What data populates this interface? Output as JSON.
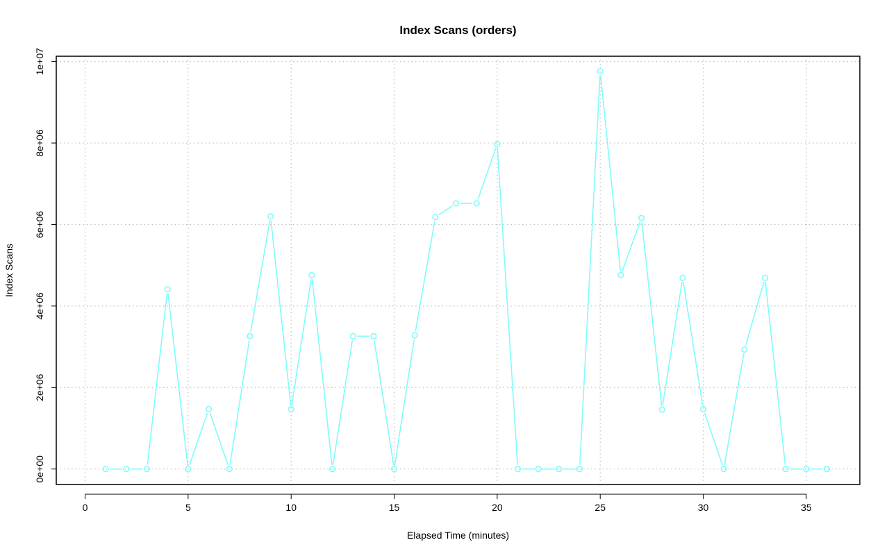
{
  "colors": {
    "series": "#7ffcfc",
    "grid": "#bebebe",
    "axis": "#000000",
    "background": "#ffffff"
  },
  "chart_data": {
    "type": "line",
    "title": "Index Scans (orders)",
    "xlabel": "Elapsed Time (minutes)",
    "ylabel": "Index Scans",
    "xlim": [
      -1.4,
      37.6
    ],
    "ylim": [
      -380000,
      10130000
    ],
    "x_ticks": [
      0,
      5,
      10,
      15,
      20,
      25,
      30,
      35
    ],
    "x_tick_labels": [
      "0",
      "5",
      "10",
      "15",
      "20",
      "25",
      "30",
      "35"
    ],
    "y_ticks": [
      0,
      2000000,
      4000000,
      6000000,
      8000000,
      10000000
    ],
    "y_tick_labels": [
      "0e+00",
      "2e+06",
      "4e+06",
      "6e+06",
      "8e+06",
      "1e+07"
    ],
    "grid": true,
    "grid_style": "dotted",
    "marker": "open-circle",
    "series": [
      {
        "x": [
          1,
          2,
          3,
          4,
          5,
          6,
          7,
          8,
          9,
          10,
          11,
          12,
          13,
          14,
          15,
          16,
          17,
          18,
          19,
          20,
          21,
          22,
          23,
          24,
          25,
          26,
          27,
          28,
          29,
          30,
          31,
          32,
          33,
          34,
          35,
          36
        ],
        "y": [
          0,
          0,
          0,
          4410000,
          0,
          1470000,
          0,
          3260000,
          6200000,
          1470000,
          4760000,
          0,
          3260000,
          3260000,
          0,
          3280000,
          6180000,
          6520000,
          6520000,
          7970000,
          0,
          0,
          0,
          0,
          9760000,
          4760000,
          6160000,
          1460000,
          4690000,
          1470000,
          0,
          2930000,
          4690000,
          0,
          0,
          0
        ]
      }
    ]
  }
}
